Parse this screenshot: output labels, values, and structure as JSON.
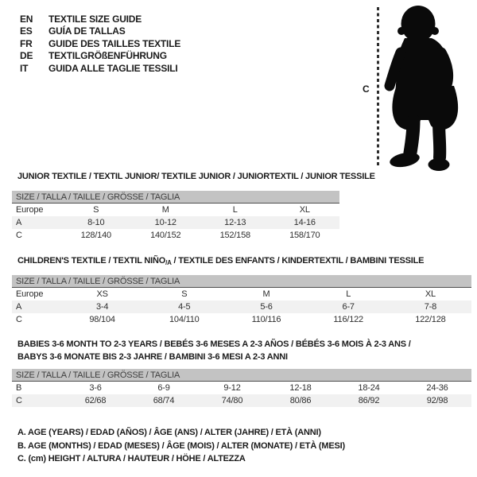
{
  "colors": {
    "header_bg": "#c3c3c3",
    "shaded_row": "#f1f1f1",
    "silhouette": "#0a0a0a",
    "text": "#1b1b1b",
    "header_border": "#4e4e4e"
  },
  "languages": [
    {
      "code": "EN",
      "title": "TEXTILE SIZE GUIDE"
    },
    {
      "code": "ES",
      "title": "GUÍA DE TALLAS"
    },
    {
      "code": "FR",
      "title": "GUIDE DES TAILLES TEXTILE"
    },
    {
      "code": "DE",
      "title": "TEXTILGRÖßENFÜHRUNG"
    },
    {
      "code": "IT",
      "title": "GUIDA ALLE TAGLIE TESSILI"
    }
  ],
  "figure": {
    "icon": "baby-silhouette-icon",
    "measure_label": "C"
  },
  "tables": [
    {
      "title": "JUNIOR TEXTILE / TEXTIL JUNIOR/ TEXTILE JUNIOR / JUNIORTEXTIL / JUNIOR TESSILE",
      "header": "SIZE / TALLA / TAILLE / GRÖSSE / TAGLIA",
      "rows": [
        {
          "label": "Europe",
          "shaded": false,
          "values": [
            "S",
            "M",
            "L",
            "XL"
          ]
        },
        {
          "label": "A",
          "shaded": true,
          "values": [
            "8-10",
            "10-12",
            "12-13",
            "14-16"
          ]
        },
        {
          "label": "C",
          "shaded": false,
          "values": [
            "128/140",
            "140/152",
            "152/158",
            "158/170"
          ]
        }
      ]
    },
    {
      "title_pre": "CHILDREN'S TEXTILE / TEXTIL NIÑO",
      "title_sub": "/A",
      "title_post": " / TEXTILE DES ENFANTS / KINDERTEXTIL / BAMBINI TESSILE",
      "header": "SIZE / TALLA / TAILLE / GRÖSSE / TAGLIA",
      "rows": [
        {
          "label": "Europe",
          "shaded": false,
          "values": [
            "XS",
            "S",
            "M",
            "L",
            "XL"
          ]
        },
        {
          "label": "A",
          "shaded": true,
          "values": [
            "3-4",
            "4-5",
            "5-6",
            "6-7",
            "7-8"
          ]
        },
        {
          "label": "C",
          "shaded": false,
          "values": [
            "98/104",
            "104/110",
            "110/116",
            "116/122",
            "122/128"
          ]
        }
      ]
    },
    {
      "title_lines": [
        "BABIES 3-6 MONTH TO 2-3 YEARS / BEBÉS 3-6 MESES A 2-3 AÑOS / BÉBÉS 3-6 MOIS À 2-3 ANS /",
        "BABYS 3-6 MONATE BIS 2-3 JAHRE / BAMBINI 3-6 MESI A 2-3 ANNI"
      ],
      "header": "SIZE / TALLA / TAILLE / GRÖSSE / TAGLIA",
      "rows": [
        {
          "label": "B",
          "shaded": false,
          "values": [
            "3-6",
            "6-9",
            "9-12",
            "12-18",
            "18-24",
            "24-36"
          ]
        },
        {
          "label": "C",
          "shaded": true,
          "values": [
            "62/68",
            "68/74",
            "74/80",
            "80/86",
            "86/92",
            "92/98"
          ]
        }
      ]
    }
  ],
  "legend": [
    "A. AGE (YEARS) / EDAD (AÑOS) / ÂGE (ANS) / ALTER (JAHRE) / ETÀ (ANNI)",
    "B. AGE (MONTHS) / EDAD (MESES) / ÂGE (MOIS) / ALTER (MONATE) / ETÀ (MESI)",
    "C. (cm) HEIGHT / ALTURA / HAUTEUR / HÖHE / ALTEZZA"
  ]
}
